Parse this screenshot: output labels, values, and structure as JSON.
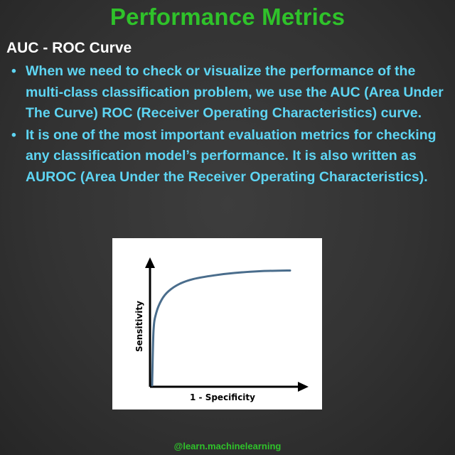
{
  "header": {
    "title": "Performance Metrics"
  },
  "section": {
    "title": "AUC - ROC Curve"
  },
  "bullets": [
    "When we need to check or visualize the performance of the multi-class classification problem, we use the AUC (Area Under The Curve) ROC (Receiver Operating Characteristics) curve.",
    "It is one of the most important evaluation metrics for checking any classification model’s performance. It is also written as AUROC (Area Under the Receiver Operating Characteristics)."
  ],
  "chart_data": {
    "type": "line",
    "title": "",
    "xlabel": "1 - Specificity",
    "ylabel": "Sensitivity",
    "grid": false,
    "legend": "none",
    "series": [
      {
        "color": "#4a6d8c",
        "points": [
          [
            0,
            0
          ],
          [
            0.01,
            0.45
          ],
          [
            0.03,
            0.6
          ],
          [
            0.07,
            0.71
          ],
          [
            0.12,
            0.78
          ],
          [
            0.2,
            0.84
          ],
          [
            0.3,
            0.88
          ],
          [
            0.45,
            0.91
          ],
          [
            0.6,
            0.93
          ],
          [
            0.8,
            0.945
          ],
          [
            1,
            0.95
          ]
        ]
      }
    ]
  },
  "footer": {
    "handle": "@learn.machinelearning"
  },
  "colors": {
    "title": "#2fc22a",
    "bullet_text": "#5ed5f3",
    "section_text": "#ffffff",
    "curve": "#4a6d8c"
  }
}
